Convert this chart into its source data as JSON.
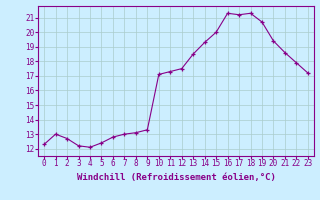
{
  "x": [
    0,
    1,
    2,
    3,
    4,
    5,
    6,
    7,
    8,
    9,
    10,
    11,
    12,
    13,
    14,
    15,
    16,
    17,
    18,
    19,
    20,
    21,
    22,
    23
  ],
  "y": [
    12.3,
    13.0,
    12.7,
    12.2,
    12.1,
    12.4,
    12.8,
    13.0,
    13.1,
    13.3,
    17.1,
    17.3,
    17.5,
    18.5,
    19.3,
    20.0,
    21.3,
    21.2,
    21.3,
    20.7,
    19.4,
    18.6,
    17.9,
    17.2
  ],
  "line_color": "#880088",
  "marker": "+",
  "marker_color": "#880088",
  "bg_color": "#cceeff",
  "grid_color": "#aacccc",
  "xlabel": "Windchill (Refroidissement éolien,°C)",
  "xlim_min": -0.5,
  "xlim_max": 23.5,
  "ylim_min": 11.5,
  "ylim_max": 21.8,
  "yticks": [
    12,
    13,
    14,
    15,
    16,
    17,
    18,
    19,
    20,
    21
  ],
  "xtick_labels": [
    "0",
    "1",
    "2",
    "3",
    "4",
    "5",
    "6",
    "7",
    "8",
    "9",
    "10",
    "11",
    "12",
    "13",
    "14",
    "15",
    "16",
    "17",
    "18",
    "19",
    "20",
    "21",
    "22",
    "23"
  ],
  "tick_fontsize": 5.5,
  "xlabel_fontsize": 6.5
}
